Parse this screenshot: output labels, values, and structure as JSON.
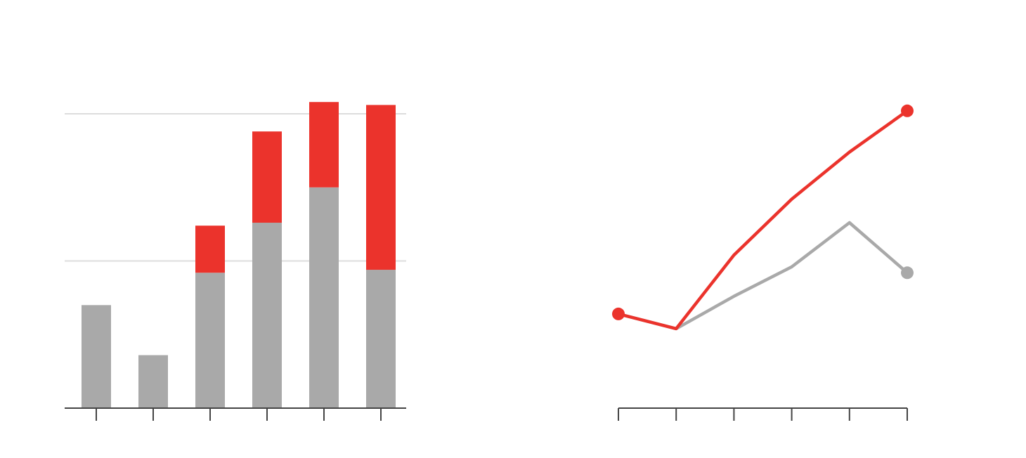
{
  "chart_data": [
    {
      "type": "bar",
      "stacked": true,
      "categories": [
        "",
        "",
        "",
        "",
        "",
        ""
      ],
      "ylim": [
        0,
        100
      ],
      "grid": true,
      "series": [
        {
          "color": "#a9a9a9",
          "values": [
            35,
            18,
            46,
            63,
            75,
            47
          ]
        },
        {
          "color": "#eb332c",
          "values": [
            0,
            0,
            16,
            31,
            29,
            56
          ]
        }
      ]
    },
    {
      "type": "line",
      "x": [
        1,
        2,
        3,
        4,
        5,
        6
      ],
      "ylim": [
        0,
        100
      ],
      "grid": false,
      "series": [
        {
          "color": "#a9a9a9",
          "values": [
            32,
            27,
            38,
            48,
            63,
            46
          ],
          "end_marker": true
        },
        {
          "color": "#eb332c",
          "values": [
            32,
            27,
            52,
            71,
            87,
            101
          ],
          "start_marker": true,
          "end_marker": true
        }
      ]
    }
  ]
}
